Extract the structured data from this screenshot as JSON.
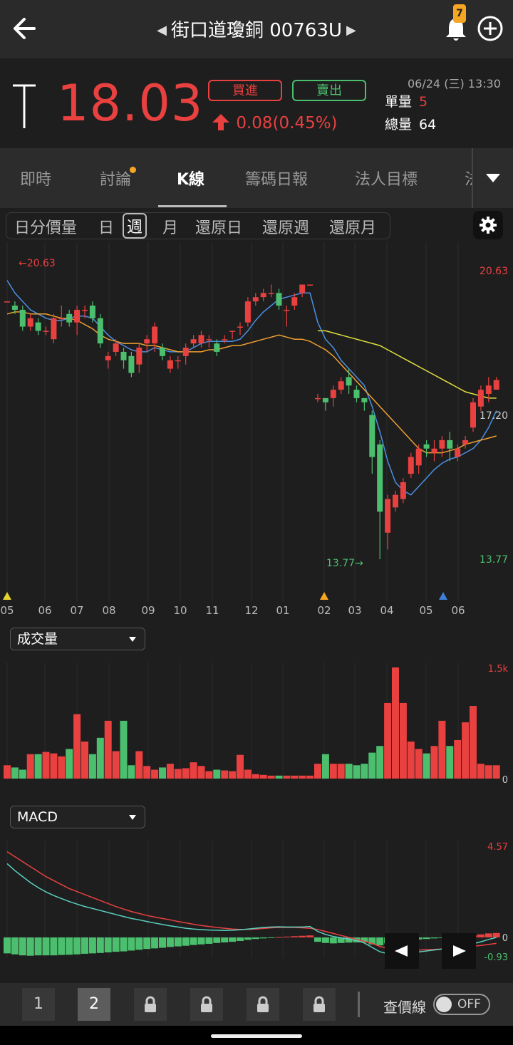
{
  "header": {
    "title": "街口道瓊銅 00763U",
    "notification_count": "7",
    "icons": {
      "back": "back-arrow-icon",
      "prev": "prev-stock-icon",
      "next": "next-stock-icon",
      "bell": "bell-icon",
      "add": "add-circle-icon"
    }
  },
  "quote": {
    "price": "18.03",
    "buy_label": "買進",
    "sell_label": "賣出",
    "change": "0.08(0.45%)",
    "datetime": "06/24 (三) 13:30",
    "unit_volume_label": "單量",
    "unit_volume": "5",
    "total_volume_label": "總量",
    "total_volume": "64",
    "colors": {
      "up": "#e94040",
      "down": "#4cbf6f"
    }
  },
  "tabs": [
    "即時",
    "討論",
    "K線",
    "籌碼日報",
    "法人目標",
    "法"
  ],
  "active_tab": "K線",
  "periods": [
    "日分價量",
    "日",
    "週",
    "月",
    "還原日",
    "還原週",
    "還原月"
  ],
  "active_period": "週",
  "chart_data": [
    {
      "type": "candlestick",
      "title": "",
      "max_label": "←20.63",
      "min_label": "13.77→",
      "y_ticks": [
        "20.63",
        "17.20",
        "13.77"
      ],
      "ylim": [
        13.77,
        20.63
      ],
      "x_ticks": [
        "05",
        "06",
        "07",
        "08",
        "09",
        "10",
        "11",
        "12",
        "01",
        "02",
        "03",
        "04",
        "05",
        "06"
      ],
      "candles": [
        [
          19.9,
          19.9,
          19.9,
          19.9
        ],
        [
          19.8,
          19.7,
          19.9,
          19.6
        ],
        [
          19.7,
          19.3,
          19.8,
          19.2
        ],
        [
          19.3,
          19.5,
          19.6,
          19.2
        ],
        [
          19.4,
          19.2,
          19.5,
          19.1
        ],
        [
          19.2,
          19.2,
          19.3,
          19.1
        ],
        [
          19.0,
          19.5,
          19.6,
          18.9
        ],
        [
          19.5,
          19.5,
          19.8,
          19.3
        ],
        [
          19.6,
          19.4,
          19.7,
          19.3
        ],
        [
          19.4,
          19.7,
          19.8,
          19.1
        ],
        [
          19.7,
          19.7,
          19.8,
          19.5
        ],
        [
          19.8,
          19.5,
          19.9,
          19.4
        ],
        [
          19.5,
          18.9,
          19.6,
          18.8
        ],
        [
          18.5,
          18.6,
          18.7,
          18.3
        ],
        [
          18.7,
          18.9,
          19.0,
          18.6
        ],
        [
          18.7,
          18.5,
          18.8,
          18.3
        ],
        [
          18.6,
          18.2,
          18.7,
          18.1
        ],
        [
          18.4,
          18.8,
          18.9,
          18.2
        ],
        [
          18.9,
          19.0,
          19.1,
          18.7
        ],
        [
          18.9,
          19.3,
          19.4,
          18.7
        ],
        [
          18.8,
          18.6,
          18.9,
          18.5
        ],
        [
          18.3,
          18.5,
          18.6,
          18.2
        ],
        [
          18.5,
          18.5,
          18.6,
          18.3
        ],
        [
          18.6,
          18.8,
          18.9,
          18.4
        ],
        [
          18.9,
          19.0,
          19.1,
          18.8
        ],
        [
          18.9,
          19.1,
          19.2,
          18.8
        ],
        [
          19.0,
          19.0,
          19.1,
          18.8
        ],
        [
          18.9,
          18.7,
          19.0,
          18.6
        ],
        [
          19.0,
          19.0,
          19.1,
          18.9
        ],
        [
          19.2,
          19.2,
          19.2,
          19.0
        ],
        [
          19.3,
          19.3,
          19.4,
          19.1
        ],
        [
          19.4,
          19.9,
          20.0,
          19.3
        ],
        [
          19.9,
          20.0,
          20.1,
          19.8
        ],
        [
          20.0,
          20.1,
          20.2,
          19.9
        ],
        [
          20.1,
          20.1,
          20.3,
          20.0
        ],
        [
          20.1,
          19.8,
          20.2,
          19.7
        ],
        [
          19.7,
          19.7,
          19.8,
          19.3
        ],
        [
          19.8,
          20.0,
          20.1,
          19.7
        ],
        [
          20.1,
          20.3,
          20.3,
          20.0
        ],
        [
          20.3,
          20.3,
          20.3,
          20.3
        ],
        [
          17.6,
          17.6,
          17.7,
          17.5
        ],
        [
          17.6,
          17.5,
          17.6,
          17.3
        ],
        [
          17.6,
          17.8,
          17.9,
          17.4
        ],
        [
          17.8,
          18.0,
          18.1,
          17.7
        ],
        [
          18.1,
          17.9,
          18.3,
          17.7
        ],
        [
          17.8,
          17.6,
          17.9,
          17.5
        ],
        [
          17.6,
          17.5,
          17.6,
          17.3
        ],
        [
          17.2,
          16.2,
          17.3,
          15.8
        ],
        [
          16.5,
          14.9,
          16.6,
          13.77
        ],
        [
          14.4,
          15.2,
          15.3,
          14.0
        ],
        [
          15.0,
          15.3,
          15.4,
          14.9
        ],
        [
          15.2,
          15.6,
          15.7,
          15.1
        ],
        [
          15.8,
          16.2,
          16.3,
          15.7
        ],
        [
          16.0,
          16.4,
          16.5,
          15.8
        ],
        [
          16.5,
          16.4,
          16.6,
          16.2
        ],
        [
          16.3,
          16.4,
          16.6,
          16.1
        ],
        [
          16.4,
          16.6,
          16.7,
          16.2
        ],
        [
          16.6,
          16.4,
          16.8,
          16.1
        ],
        [
          16.2,
          16.4,
          16.5,
          16.1
        ],
        [
          16.5,
          16.6,
          16.7,
          16.4
        ],
        [
          16.9,
          17.5,
          17.6,
          16.8
        ],
        [
          17.4,
          17.8,
          17.9,
          17.3
        ],
        [
          17.7,
          17.9,
          18.1,
          17.5
        ],
        [
          17.8,
          18.03,
          18.1,
          17.8
        ]
      ],
      "markers": [
        {
          "x_label": "05",
          "color": "#e6d230"
        },
        {
          "x_label": "02",
          "color": "#f5a623"
        },
        {
          "x_label": "06",
          "color": "#3f7fd9"
        }
      ],
      "series": [
        {
          "name": "",
          "color": "#4a90e2",
          "values": [
            20.4,
            20.1,
            19.9,
            19.7,
            19.6,
            19.5,
            19.45,
            19.45,
            19.5,
            19.55,
            19.55,
            19.5,
            19.3,
            19.1,
            18.95,
            18.85,
            18.75,
            18.7,
            18.7,
            18.8,
            18.75,
            18.7,
            18.7,
            18.7,
            18.8,
            18.9,
            18.95,
            18.95,
            18.95,
            18.95,
            19.0,
            19.2,
            19.45,
            19.65,
            19.8,
            19.95,
            20.0,
            20.05,
            20.1,
            20.1,
            19.4,
            19.0,
            18.8,
            18.5,
            18.3,
            18.1,
            17.9,
            17.4,
            16.8,
            16.1,
            15.6,
            15.4,
            15.3,
            15.5,
            15.7,
            15.9,
            16.05,
            16.15,
            16.2,
            16.3,
            16.4,
            16.6,
            16.9,
            17.3
          ]
        },
        {
          "name": "",
          "color": "#f0a030",
          "values": [
            19.6,
            19.65,
            19.65,
            19.6,
            19.6,
            19.6,
            19.55,
            19.5,
            19.5,
            19.45,
            19.35,
            19.25,
            19.1,
            19.0,
            18.95,
            18.9,
            18.9,
            18.9,
            18.85,
            18.85,
            18.8,
            18.75,
            18.7,
            18.7,
            18.7,
            18.7,
            18.75,
            18.75,
            18.8,
            18.85,
            18.85,
            18.9,
            18.95,
            19.0,
            19.05,
            19.1,
            19.05,
            19.0,
            19.0,
            18.95,
            18.85,
            18.75,
            18.6,
            18.4,
            18.2,
            18.0,
            17.8,
            17.6,
            17.4,
            17.2,
            17.0,
            16.8,
            16.6,
            16.4,
            16.3,
            16.3,
            16.3,
            16.35,
            16.4,
            16.5,
            16.55,
            16.6,
            16.65,
            16.7
          ]
        },
        {
          "name": "",
          "color": "#e0e040",
          "values": [
            null,
            null,
            null,
            null,
            null,
            null,
            null,
            null,
            null,
            null,
            null,
            null,
            null,
            null,
            null,
            null,
            null,
            null,
            null,
            null,
            null,
            null,
            null,
            null,
            null,
            null,
            null,
            null,
            null,
            null,
            null,
            null,
            null,
            null,
            null,
            null,
            null,
            null,
            null,
            null,
            19.2,
            19.2,
            19.15,
            19.1,
            19.05,
            19.0,
            18.95,
            18.9,
            18.85,
            18.75,
            18.65,
            18.55,
            18.45,
            18.35,
            18.25,
            18.15,
            18.05,
            17.95,
            17.85,
            17.75,
            17.7,
            17.65,
            17.6,
            17.6
          ]
        }
      ]
    },
    {
      "type": "bar",
      "title": "成交量",
      "y_ticks": [
        "1.5k",
        "0"
      ],
      "ylim": [
        0,
        1500
      ],
      "values": [
        180,
        150,
        120,
        330,
        330,
        360,
        340,
        300,
        400,
        870,
        500,
        330,
        550,
        780,
        370,
        780,
        180,
        370,
        170,
        120,
        150,
        200,
        130,
        140,
        220,
        170,
        100,
        120,
        110,
        100,
        320,
        120,
        60,
        50,
        40,
        40,
        40,
        40,
        40,
        40,
        200,
        330,
        200,
        200,
        200,
        180,
        200,
        350,
        440,
        1020,
        1500,
        1020,
        500,
        400,
        340,
        440,
        780,
        440,
        520,
        760,
        980,
        200,
        180,
        180
      ],
      "colors_up_down": [
        "#4cbf6f",
        "#e94040"
      ]
    },
    {
      "type": "bar",
      "title": "MACD",
      "y_ticks": [
        "4.57",
        "0",
        "-0.93"
      ],
      "ylim": [
        -0.93,
        4.57
      ],
      "hist_values": [
        -0.8,
        -0.85,
        -0.9,
        -0.92,
        -0.9,
        -0.9,
        -0.9,
        -0.88,
        -0.87,
        -0.85,
        -0.82,
        -0.8,
        -0.78,
        -0.75,
        -0.72,
        -0.7,
        -0.66,
        -0.62,
        -0.58,
        -0.55,
        -0.52,
        -0.48,
        -0.45,
        -0.42,
        -0.38,
        -0.35,
        -0.32,
        -0.28,
        -0.25,
        -0.22,
        -0.18,
        -0.12,
        -0.08,
        -0.05,
        -0.02,
        0.02,
        0.04,
        0.06,
        0.08,
        0.1,
        -0.22,
        -0.28,
        -0.3,
        -0.28,
        -0.26,
        -0.25,
        -0.25,
        -0.35,
        -0.4,
        -0.3,
        -0.2,
        -0.15,
        -0.12,
        -0.1,
        -0.08,
        -0.05,
        -0.03,
        -0.02,
        0.02,
        0.06,
        0.1,
        0.15,
        0.2,
        0.22
      ],
      "series": [
        {
          "name": "",
          "color": "#e94040",
          "values": [
            4.3,
            4.05,
            3.8,
            3.55,
            3.3,
            3.05,
            2.85,
            2.65,
            2.45,
            2.3,
            2.15,
            2.0,
            1.85,
            1.7,
            1.55,
            1.42,
            1.3,
            1.2,
            1.1,
            1.02,
            0.95,
            0.88,
            0.8,
            0.73,
            0.66,
            0.6,
            0.55,
            0.5,
            0.46,
            0.42,
            0.4,
            0.4,
            0.42,
            0.45,
            0.48,
            0.5,
            0.5,
            0.5,
            0.48,
            0.46,
            0.4,
            0.3,
            0.2,
            0.1,
            0.0,
            -0.1,
            -0.2,
            -0.3,
            -0.45,
            -0.55,
            -0.6,
            -0.62,
            -0.63,
            -0.63,
            -0.62,
            -0.6,
            -0.58,
            -0.55,
            -0.52,
            -0.48,
            -0.44,
            -0.4,
            -0.35,
            -0.3
          ]
        },
        {
          "name": "",
          "color": "#5ad0c0",
          "values": [
            3.7,
            3.35,
            3.05,
            2.75,
            2.5,
            2.28,
            2.1,
            1.95,
            1.8,
            1.67,
            1.55,
            1.45,
            1.35,
            1.25,
            1.15,
            1.05,
            0.95,
            0.88,
            0.8,
            0.72,
            0.65,
            0.58,
            0.52,
            0.46,
            0.42,
            0.39,
            0.37,
            0.36,
            0.35,
            0.36,
            0.38,
            0.42,
            0.46,
            0.5,
            0.52,
            0.53,
            0.52,
            0.52,
            0.52,
            0.55,
            0.3,
            0.15,
            0.05,
            -0.02,
            -0.08,
            -0.15,
            -0.28,
            -0.5,
            -0.72,
            -0.82,
            -0.85,
            -0.82,
            -0.78,
            -0.73,
            -0.68,
            -0.63,
            -0.58,
            -0.53,
            -0.48,
            -0.4,
            -0.32,
            -0.22,
            -0.1,
            0.0
          ]
        }
      ]
    }
  ],
  "volume_indicator": "成交量",
  "macd_indicator": "MACD",
  "bottom": {
    "pages": [
      "1",
      "2"
    ],
    "active_page": "2",
    "lookup_line_label": "查價線",
    "toggle_label": "OFF"
  }
}
